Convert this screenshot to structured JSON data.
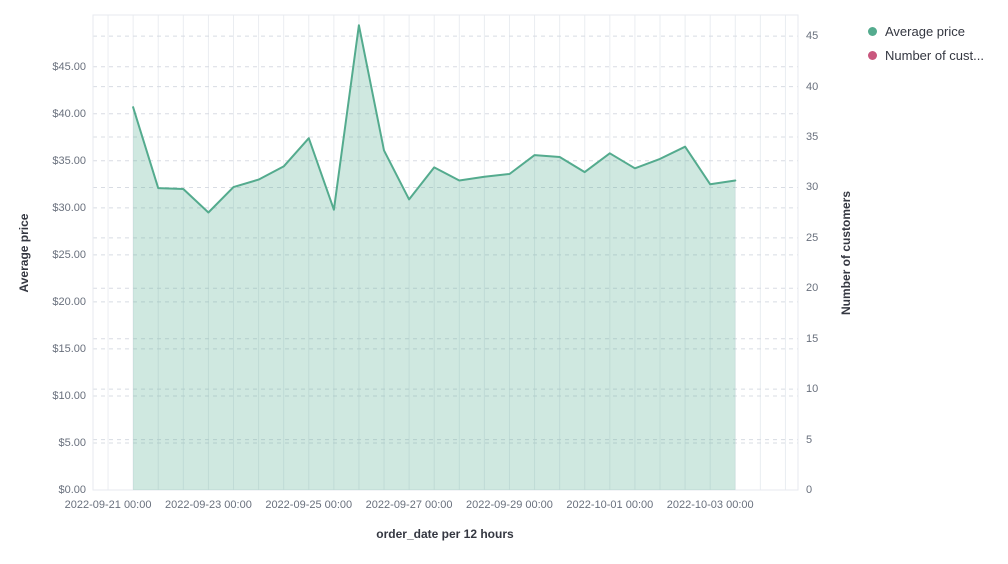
{
  "legend": {
    "position": "top-right",
    "items": [
      {
        "label": "Average price",
        "color": "#54AB8E"
      },
      {
        "label": "Number of cust...",
        "color": "#C9577E"
      }
    ]
  },
  "axes": {
    "left": {
      "title": "Average price",
      "ticks": [
        "$0.00",
        "$5.00",
        "$10.00",
        "$15.00",
        "$20.00",
        "$25.00",
        "$30.00",
        "$35.00",
        "$40.00",
        "$45.00"
      ],
      "tick_values": [
        0,
        5,
        10,
        15,
        20,
        25,
        30,
        35,
        40,
        45
      ]
    },
    "right": {
      "title": "Number of customers",
      "ticks": [
        "0",
        "5",
        "10",
        "15",
        "20",
        "25",
        "30",
        "35",
        "40",
        "45"
      ],
      "tick_values": [
        0,
        5,
        10,
        15,
        20,
        25,
        30,
        35,
        40,
        45
      ]
    },
    "bottom": {
      "title": "order_date per 12 hours",
      "tick_labels": [
        "2022-09-21 00:00",
        "2022-09-23 00:00",
        "2022-09-25 00:00",
        "2022-09-27 00:00",
        "2022-09-29 00:00",
        "2022-10-01 00:00",
        "2022-10-03 00:00"
      ],
      "tick_indices": [
        0,
        4,
        8,
        12,
        16,
        20,
        24
      ]
    }
  },
  "chart_data": {
    "type": "area",
    "title": "",
    "xlabel": "order_date per 12 hours",
    "ylabel": "Average price",
    "y2label": "Number of customers",
    "x_interval": "12 hours",
    "x": [
      "2022-09-21 12:00",
      "2022-09-22 00:00",
      "2022-09-22 12:00",
      "2022-09-23 00:00",
      "2022-09-23 12:00",
      "2022-09-24 00:00",
      "2022-09-24 12:00",
      "2022-09-25 00:00",
      "2022-09-25 12:00",
      "2022-09-26 00:00",
      "2022-09-26 12:00",
      "2022-09-27 00:00",
      "2022-09-27 12:00",
      "2022-09-28 00:00",
      "2022-09-28 12:00",
      "2022-09-29 00:00",
      "2022-09-29 12:00",
      "2022-09-30 00:00",
      "2022-09-30 12:00",
      "2022-10-01 00:00",
      "2022-10-01 12:00",
      "2022-10-02 00:00",
      "2022-10-02 12:00",
      "2022-10-03 00:00",
      "2022-10-03 12:00"
    ],
    "series": [
      {
        "name": "Average price",
        "axis": "left",
        "color": "#54AB8E",
        "fill_opacity": 0.28,
        "values": [
          40.7,
          32.1,
          32.0,
          29.5,
          32.2,
          33.0,
          34.4,
          37.4,
          29.8,
          49.4,
          36.1,
          30.9,
          34.3,
          32.9,
          33.3,
          33.6,
          35.6,
          35.4,
          33.8,
          35.8,
          34.2,
          35.2,
          36.5,
          32.5,
          32.9
        ]
      },
      {
        "name": "Number of customers",
        "axis": "right",
        "color": "#C9577E",
        "fill_opacity": 0.28,
        "values": []
      }
    ],
    "ylim": [
      0,
      50.5
    ],
    "y2lim": [
      0,
      47.1
    ],
    "x_index_range": [
      -0.6,
      27.5
    ],
    "x_start_index": 1,
    "grid": true,
    "legend_position": "top-right"
  }
}
